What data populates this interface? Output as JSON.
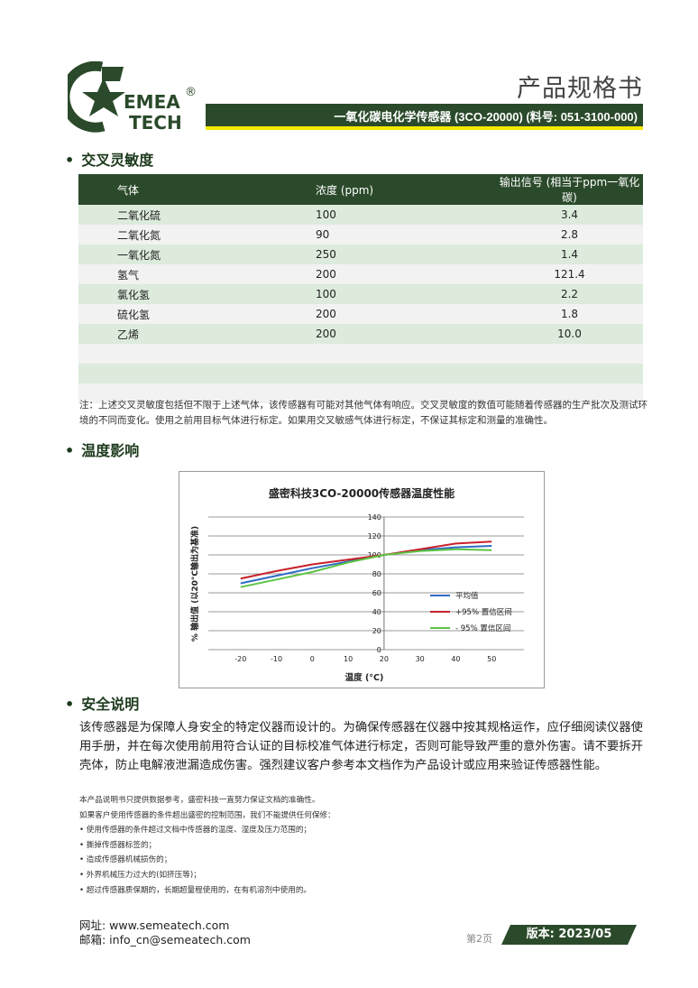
{
  "header": {
    "logo_text": [
      "EMEA",
      "TECH"
    ],
    "registered": "®",
    "doc_title": "产品规格书",
    "subtitle": "一氧化碳电化学传感器 (3CO-20000) (料号: 051-3100-000)"
  },
  "colors": {
    "brand_green": "#2b4a2b",
    "accent_yellow": "#f2ea00",
    "row_green": "#dcebdc",
    "row_gray": "#f2f2f2"
  },
  "cross": {
    "title": "交叉灵敏度",
    "headers": [
      "气体",
      "浓度 (ppm)",
      "输出信号 (相当于ppm一氧化碳)"
    ],
    "rows": [
      [
        "二氧化硫",
        "100",
        "3.4"
      ],
      [
        "二氧化氮",
        "90",
        "2.8"
      ],
      [
        "一氧化氮",
        "250",
        "1.4"
      ],
      [
        "氢气",
        "200",
        "121.4"
      ],
      [
        "氯化氢",
        "100",
        "2.2"
      ],
      [
        "硫化氢",
        "200",
        "1.8"
      ],
      [
        "乙烯",
        "200",
        "10.0"
      ],
      [
        "",
        "",
        ""
      ],
      [
        "",
        "",
        ""
      ],
      [
        "",
        "",
        ""
      ]
    ],
    "note": "注：上述交叉灵敏度包括但不限于上述气体，该传感器有可能对其他气体有响应。交叉灵敏度的数值可能随着传感器的生产批次及测试环境的不同而变化。使用之前用目标气体进行标定。如果用交叉敏感气体进行标定，不保证其标定和测量的准确性。"
  },
  "temp": {
    "title": "温度影响"
  },
  "chart_data": {
    "type": "line",
    "title": "盛密科技3CO-20000传感器温度性能",
    "xlabel": "温度 (°C)",
    "ylabel": "% 输出值 (以20°C输出为基准)",
    "x": [
      -20,
      -10,
      0,
      10,
      20,
      30,
      40,
      50
    ],
    "xticks": [
      -20,
      -10,
      0,
      10,
      20,
      30,
      40,
      50
    ],
    "yticks": [
      0,
      20,
      40,
      60,
      80,
      100,
      120,
      140
    ],
    "xlim": [
      -29,
      59
    ],
    "ylim": [
      0,
      140
    ],
    "grid": true,
    "legend": "right",
    "series": [
      {
        "name": "平均值",
        "color": "#2e6bc4",
        "values": [
          70,
          78,
          86,
          93,
          100,
          105,
          108,
          109.5
        ]
      },
      {
        "name": "+95% 置信区间",
        "color": "#c8202a",
        "values": [
          75,
          83,
          90,
          95,
          100,
          106,
          112,
          114
        ]
      },
      {
        "name": "- 95% 置信区间",
        "color": "#5cc443",
        "values": [
          66,
          74,
          82,
          92,
          100,
          104,
          106,
          105
        ]
      }
    ]
  },
  "safety": {
    "title": "安全说明",
    "text": "该传感器是为保障人身安全的特定仪器而设计的。为确保传感器在仪器中按其规格运作，应仔细阅读仪器使用手册，并在每次使用前用符合认证的目标校准气体进行标定，否则可能导致严重的意外伤害。请不要拆开壳体，防止电解液泄漏造成伤害。强烈建议客户参考本文档作为产品设计或应用来验证传感器性能。"
  },
  "disclaimer": [
    "本产品说明书只提供数据参考，盛密科技一直努力保证文档的准确性。",
    "如果客户使用传感器的条件超出盛密的控制范围，我们不能提供任何保修：",
    "• 使用传感器的条件超过文档中传感器的温度、湿度及压力范围的；",
    "• 撕掉传感器标签的；",
    "• 造成传感器机械损伤的；",
    "• 外界机械压力过大的(如挤压等)；",
    "• 超过传感器质保期的，长期超量程使用的，在有机溶剂中使用的。"
  ],
  "footer": {
    "website": "网址:  www.semeatech.com",
    "email": "邮箱:  info_cn@semeatech.com",
    "page": "第2页",
    "version": "版本: 2023/05"
  }
}
